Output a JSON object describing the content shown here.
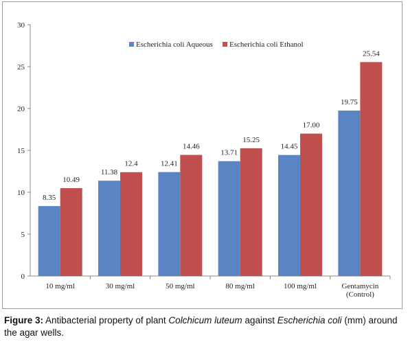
{
  "chart_data": {
    "type": "bar",
    "categories": [
      "10 mg/ml",
      "30 mg/ml",
      "50 mg/ml",
      "80 mg/ml",
      "100 mg/ml",
      "Gentamycin\n(Control)"
    ],
    "series": [
      {
        "name": "Escherichia coli Aqueous",
        "color": "#5b84c4",
        "values": [
          8.35,
          11.38,
          12.41,
          13.71,
          14.45,
          19.75
        ],
        "labels": [
          "8.35",
          "11.38",
          "12.41",
          "13.71",
          "14.45",
          "19.75"
        ]
      },
      {
        "name": "Escherichia coli Ethanol",
        "color": "#c0504d",
        "values": [
          10.49,
          12.4,
          14.46,
          15.25,
          17.0,
          25.54
        ],
        "labels": [
          "10.49",
          "12.4",
          "14.46",
          "15.25",
          "17.00",
          "25.54"
        ]
      }
    ],
    "ylim": [
      0,
      30
    ],
    "yticks": [
      "0",
      "5",
      "10",
      "15",
      "20",
      "25",
      "30"
    ],
    "grid": false,
    "legend": "top-center"
  },
  "caption": {
    "label": "Figure 3:",
    "t1": " Antibacterial property of plant ",
    "i1": "Colchicum luteum",
    "t2": " against ",
    "i2": "Escherichia coli",
    "t3": " (mm) around the agar wells."
  }
}
